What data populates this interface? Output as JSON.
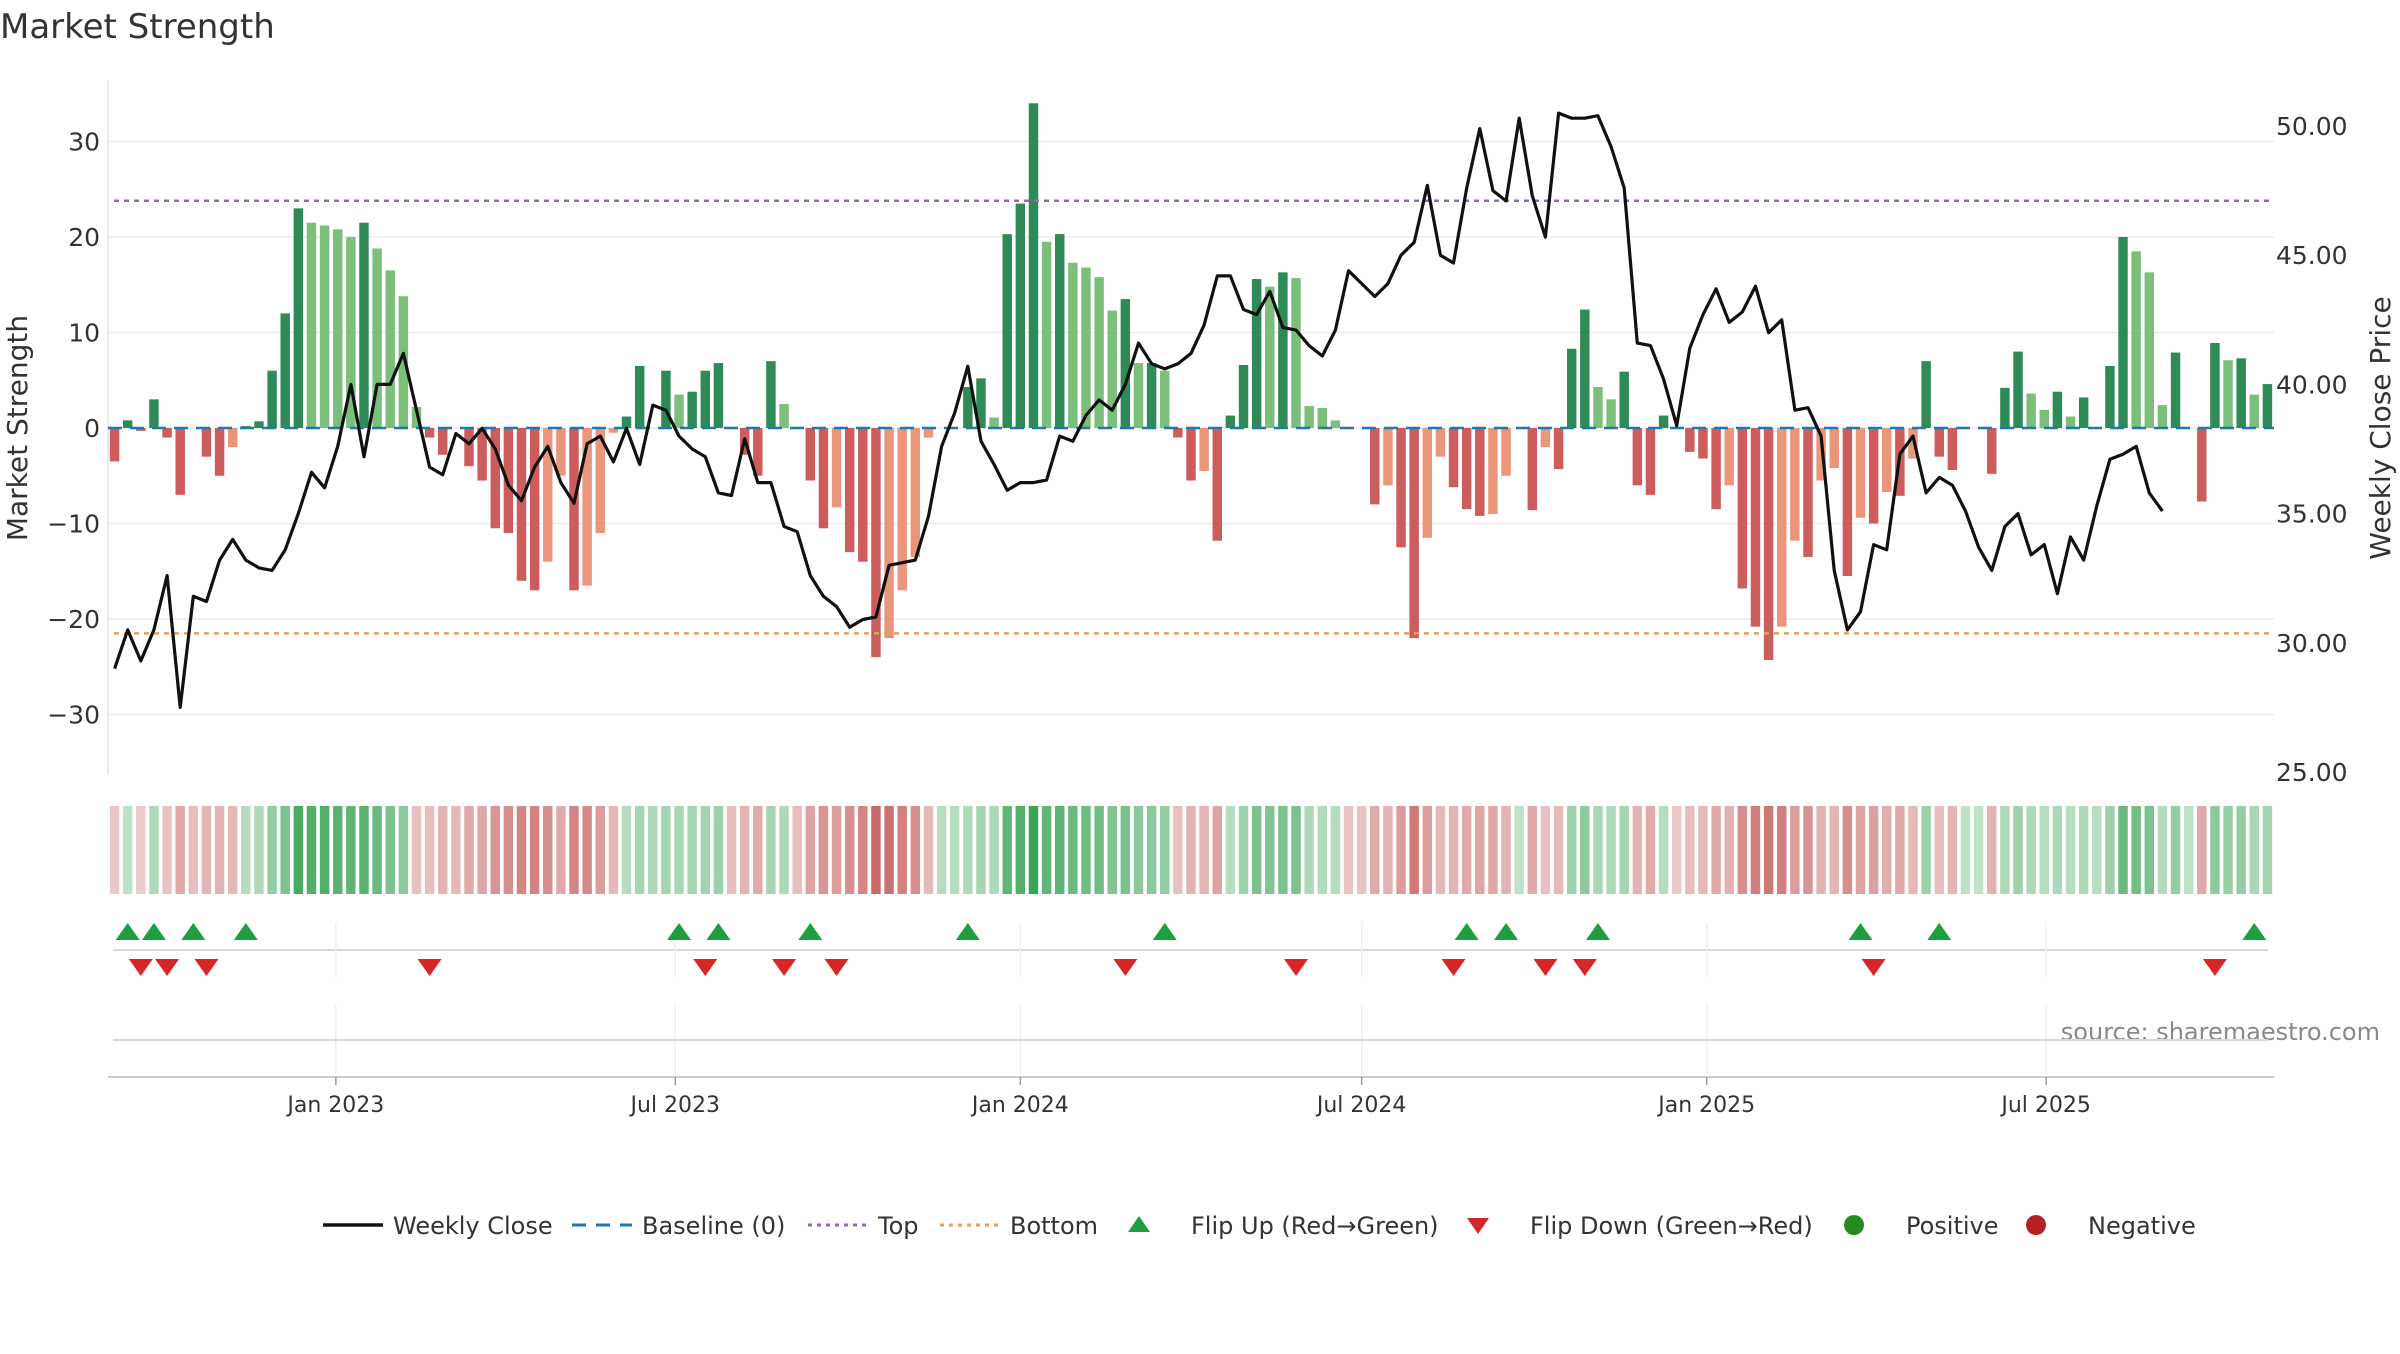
{
  "title": "Market Strength",
  "source": "source: sharemaestro.com",
  "colors": {
    "pos_strong": "#2e8b57",
    "pos_weak": "#7cbf7a",
    "neg_strong": "#cd5c5c",
    "neg_weak": "#e9967a",
    "price": "#111111",
    "baseline": "#1f77b4",
    "top": "#9467bd",
    "bottom": "#e0a060",
    "flip_up": "#1e9e3e",
    "flip_down": "#d62728",
    "positive": "#228b22",
    "negative": "#b22222",
    "grid": "#ebebeb"
  },
  "chart_data": {
    "type": "bar",
    "x_start": "2022-09-05",
    "x_step_days": 7,
    "left_axis": {
      "label": "Market Strength",
      "range": [
        -36,
        36
      ],
      "ticks": [
        30,
        20,
        10,
        0,
        -10,
        -20,
        -30
      ]
    },
    "right_axis": {
      "label": "Weekly Close Price",
      "range": [
        25,
        51
      ],
      "ticks": [
        "50.00",
        "45.00",
        "40.00",
        "35.00",
        "30.00",
        "25.00"
      ]
    },
    "x_ticks": [
      {
        "label": "Jan 2023",
        "date": "2023-01-01"
      },
      {
        "label": "Jul 2023",
        "date": "2023-07-01"
      },
      {
        "label": "Jan 2024",
        "date": "2024-01-01"
      },
      {
        "label": "Jul 2024",
        "date": "2024-07-01"
      },
      {
        "label": "Jan 2025",
        "date": "2025-01-01"
      },
      {
        "label": "Jul 2025",
        "date": "2025-07-01"
      }
    ],
    "top_level": 23.8,
    "bottom_level": -21.5,
    "strength": [
      -3.5,
      0.8,
      -0.3,
      3,
      -1,
      -7,
      0,
      -3,
      -5,
      -2,
      0.2,
      0.7,
      6,
      12,
      23,
      21.5,
      21.2,
      20.8,
      20,
      21.5,
      18.8,
      16.5,
      13.8,
      2.2,
      -1,
      -2.8,
      0,
      -4,
      -5.5,
      -10.5,
      -11,
      -16,
      -17,
      -14,
      -5,
      -17,
      -16.5,
      -11,
      -0.5,
      1.2,
      6.5,
      0,
      6,
      3.5,
      3.8,
      6,
      6.8,
      0,
      -2.8,
      -5,
      7,
      2.5,
      0,
      -5.5,
      -10.5,
      -8.3,
      -13,
      -14,
      -24,
      -22,
      -17,
      -13.5,
      -1,
      0,
      0,
      4.3,
      5.2,
      1.1,
      20.3,
      23.5,
      34,
      19.5,
      20.3,
      17.3,
      16.8,
      15.8,
      12.3,
      13.5,
      6.8,
      6.8,
      6,
      -1,
      -5.5,
      -4.5,
      -11.8,
      1.3,
      6.6,
      15.6,
      14.8,
      16.3,
      15.7,
      2.3,
      2.1,
      0.8,
      0,
      0,
      -8,
      -6,
      -12.5,
      -22,
      -11.5,
      -3,
      -6.2,
      -8.5,
      -9.2,
      -9,
      -5,
      0,
      -8.6,
      -2,
      -4.3,
      8.3,
      12.4,
      4.3,
      3,
      5.9,
      -6,
      -7,
      1.3,
      0,
      -2.5,
      -3.2,
      -8.5,
      -6,
      -16.8,
      -20.8,
      -24.3,
      -20.8,
      -11.8,
      -13.5,
      -5.5,
      -4.2,
      -15.5,
      -9.4,
      -10,
      -6.7,
      -7.1,
      -3.2,
      7,
      -3,
      -4.4,
      0,
      0,
      -4.8,
      4.2,
      8,
      3.6,
      1.9,
      3.8,
      1.2,
      3.2,
      0,
      6.5,
      20,
      18.5,
      16.3,
      2.4,
      7.9,
      0,
      -7.7,
      8.9,
      7.1,
      7.3,
      3.5,
      4.6
    ],
    "price": [
      29,
      30.5,
      29.3,
      30.5,
      32.6,
      27.5,
      31.8,
      31.6,
      33.2,
      34,
      33.2,
      32.9,
      32.8,
      33.6,
      35,
      36.6,
      36,
      37.6,
      40,
      37.2,
      40,
      40,
      41.2,
      39,
      36.8,
      36.5,
      38.1,
      37.7,
      38.3,
      37.5,
      36.1,
      35.5,
      36.8,
      37.6,
      36.2,
      35.4,
      37.7,
      38,
      37,
      38.3,
      36.9,
      39.2,
      39,
      38,
      37.5,
      37.2,
      35.8,
      35.7,
      37.9,
      36.2,
      36.2,
      34.5,
      34.3,
      32.6,
      31.8,
      31.4,
      30.6,
      30.9,
      31,
      33,
      33.1,
      33.2,
      34.9,
      37.6,
      38.9,
      40.7,
      37.8,
      36.9,
      35.9,
      36.2,
      36.2,
      36.3,
      38,
      37.8,
      38.8,
      39.4,
      39,
      40,
      41.6,
      40.8,
      40.6,
      40.8,
      41.2,
      42.3,
      44.2,
      44.2,
      42.9,
      42.7,
      43.6,
      42.2,
      42.1,
      41.5,
      41.1,
      42.1,
      44.4,
      43.9,
      43.4,
      43.9,
      45,
      45.5,
      47.7,
      45,
      44.7,
      47.6,
      49.9,
      47.5,
      47.1,
      50.3,
      47.3,
      45.7,
      50.5,
      50.3,
      50.3,
      50.4,
      49.2,
      47.6,
      41.6,
      41.5,
      40.2,
      38.4,
      41.4,
      42.7,
      43.7,
      42.4,
      42.8,
      43.8,
      42,
      42.5,
      39,
      39.1,
      38,
      32.8,
      30.5,
      31.2,
      33.8,
      33.6,
      37.3,
      38,
      35.8,
      36.4,
      36.1,
      35.1,
      33.7,
      32.8,
      34.5,
      35,
      33.4,
      33.8,
      31.9,
      34.1,
      33.2,
      35.3,
      37.1,
      37.3,
      37.6,
      35.8,
      35.1
    ],
    "shade": [
      -0.15,
      0.15,
      -0.12,
      0.25,
      -0.18,
      -0.35,
      -0.22,
      -0.28,
      -0.3,
      -0.25,
      0.2,
      0.25,
      0.4,
      0.55,
      0.85,
      0.8,
      0.8,
      0.75,
      0.72,
      0.75,
      0.65,
      0.55,
      0.45,
      -0.2,
      -0.22,
      -0.3,
      -0.25,
      -0.35,
      -0.38,
      -0.5,
      -0.55,
      -0.6,
      -0.62,
      -0.55,
      -0.35,
      -0.6,
      -0.58,
      -0.45,
      -0.25,
      0.2,
      0.3,
      0.25,
      0.3,
      0.28,
      0.3,
      0.32,
      0.35,
      -0.22,
      -0.3,
      -0.35,
      0.3,
      0.25,
      -0.22,
      -0.4,
      -0.5,
      -0.45,
      -0.55,
      -0.6,
      -0.8,
      -0.75,
      -0.65,
      -0.55,
      -0.25,
      0.2,
      0.2,
      0.25,
      0.3,
      0.25,
      0.7,
      0.8,
      0.95,
      0.7,
      0.72,
      0.65,
      0.62,
      0.6,
      0.52,
      0.55,
      0.45,
      0.45,
      0.4,
      -0.2,
      -0.3,
      -0.28,
      -0.4,
      0.2,
      0.35,
      0.55,
      0.52,
      0.55,
      0.55,
      0.25,
      0.22,
      0.2,
      -0.18,
      -0.18,
      -0.35,
      -0.3,
      -0.45,
      -0.7,
      -0.45,
      -0.25,
      -0.3,
      -0.35,
      -0.38,
      -0.37,
      -0.3,
      0.15,
      -0.35,
      -0.2,
      -0.25,
      0.35,
      0.45,
      0.28,
      0.25,
      0.3,
      -0.3,
      -0.35,
      0.2,
      -0.15,
      -0.22,
      -0.25,
      -0.35,
      -0.3,
      -0.55,
      -0.65,
      -0.7,
      -0.65,
      -0.45,
      -0.5,
      -0.3,
      -0.28,
      -0.55,
      -0.4,
      -0.42,
      -0.33,
      -0.35,
      -0.25,
      0.35,
      -0.22,
      -0.28,
      0.15,
      0.15,
      -0.3,
      0.25,
      0.35,
      0.25,
      0.2,
      0.25,
      0.2,
      0.25,
      0.18,
      0.35,
      0.65,
      0.6,
      0.55,
      0.22,
      0.4,
      0.15,
      -0.35,
      0.45,
      0.38,
      0.4,
      0.28,
      0.32
    ],
    "flip_up_weeks": [
      1,
      3,
      6,
      10,
      43,
      46,
      53,
      65,
      80,
      103,
      106,
      113,
      133,
      139,
      163
    ],
    "flip_down_weeks": [
      2,
      4,
      7,
      24,
      45,
      51,
      55,
      77,
      90,
      102,
      109,
      112,
      134,
      160
    ],
    "legend": [
      "Weekly Close",
      "Baseline (0)",
      "Top",
      "Bottom",
      "Flip Up (Red→Green)",
      "Flip Down (Green→Red)",
      "Positive",
      "Negative"
    ]
  }
}
